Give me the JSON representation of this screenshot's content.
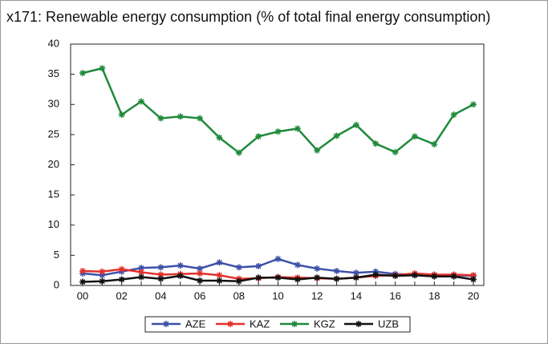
{
  "chart_data": {
    "type": "line",
    "title": "x171: Renewable energy consumption (% of total final energy consumption)",
    "categories": [
      "00",
      null,
      "02",
      null,
      "04",
      null,
      "06",
      null,
      "08",
      null,
      "10",
      null,
      "12",
      null,
      "14",
      null,
      "16",
      null,
      "18",
      null,
      "20"
    ],
    "series": [
      {
        "name": "AZE",
        "color": "#3c50a8",
        "values": [
          2.0,
          1.7,
          2.3,
          2.9,
          3.0,
          3.3,
          2.8,
          3.8,
          3.0,
          3.2,
          4.4,
          3.4,
          2.8,
          2.4,
          2.1,
          2.3,
          1.9,
          1.8,
          1.7,
          1.7,
          1.6
        ]
      },
      {
        "name": "KAZ",
        "color": "#e3302a",
        "values": [
          2.4,
          2.3,
          2.7,
          2.2,
          1.8,
          1.9,
          2.0,
          1.7,
          1.1,
          1.2,
          1.4,
          1.3,
          1.2,
          1.1,
          1.3,
          1.6,
          1.7,
          2.0,
          1.8,
          1.8,
          1.7
        ]
      },
      {
        "name": "KGZ",
        "color": "#1f8a3a",
        "values": [
          35.2,
          36.0,
          28.3,
          30.5,
          27.7,
          28.0,
          27.7,
          24.5,
          22.0,
          24.7,
          25.5,
          26.0,
          22.4,
          24.8,
          26.6,
          23.5,
          22.1,
          24.7,
          23.4,
          28.3,
          30.0
        ]
      },
      {
        "name": "UZB",
        "color": "#111111",
        "values": [
          0.6,
          0.7,
          1.0,
          1.4,
          1.1,
          1.6,
          0.8,
          0.8,
          0.7,
          1.3,
          1.3,
          1.0,
          1.3,
          1.1,
          1.3,
          1.8,
          1.6,
          1.7,
          1.5,
          1.5,
          1.0
        ]
      }
    ],
    "ylim": [
      0,
      40
    ],
    "yticks": [
      0,
      5,
      10,
      15,
      20,
      25,
      30,
      35,
      40
    ],
    "legend": "bottom"
  }
}
